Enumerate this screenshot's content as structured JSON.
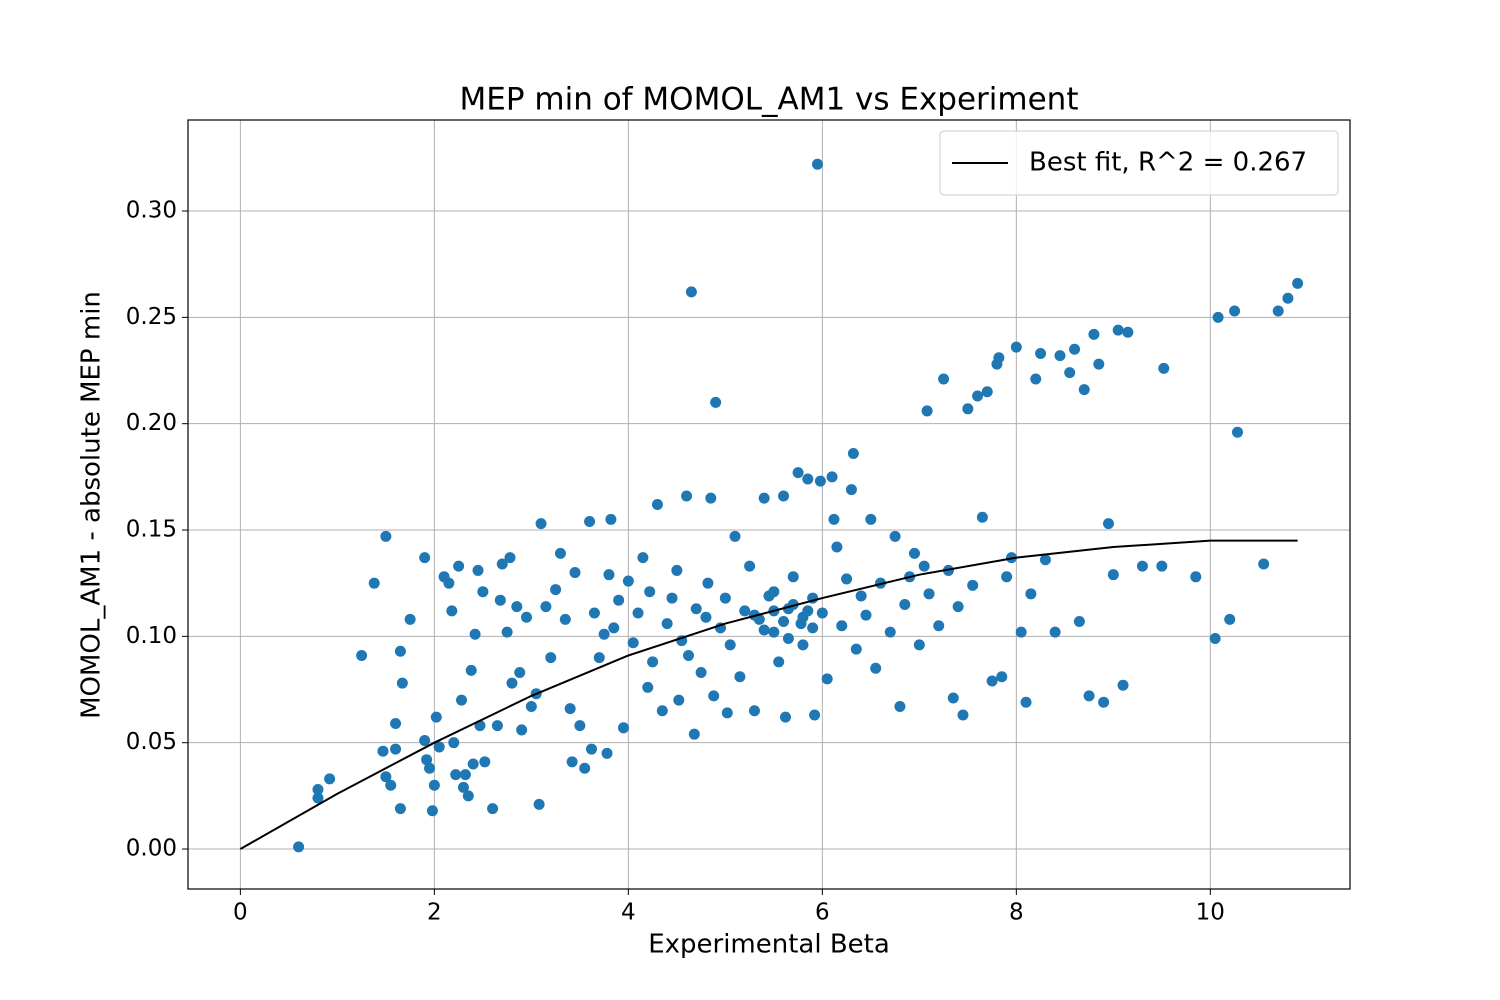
{
  "chart_data": {
    "type": "scatter",
    "title": "MEP min of MOMOL_AM1 vs Experiment",
    "xlabel": "Experimental Beta",
    "ylabel": "MOMOL_AM1 - absolute MEP min",
    "xlim": [
      -0.54,
      11.44
    ],
    "ylim": [
      -0.0188,
      0.3428
    ],
    "xticks": [
      0,
      2,
      4,
      6,
      8,
      10
    ],
    "yticks": [
      {
        "value": 0,
        "label": "0.00"
      },
      {
        "value": 0.05,
        "label": "0.05"
      },
      {
        "value": 0.1,
        "label": "0.10"
      },
      {
        "value": 0.15,
        "label": "0.15"
      },
      {
        "value": 0.2,
        "label": "0.20"
      },
      {
        "value": 0.25,
        "label": "0.25"
      },
      {
        "value": 0.3,
        "label": "0.30"
      }
    ],
    "grid": true,
    "legend": "upper right",
    "series": [
      {
        "type": "scatter",
        "color": "#1f77b4",
        "x": [
          0.6,
          0.8,
          0.8,
          0.92,
          1.25,
          1.38,
          1.5,
          1.5,
          1.47,
          1.55,
          1.6,
          1.6,
          1.65,
          1.67,
          1.65,
          1.75,
          1.9,
          1.9,
          1.92,
          1.95,
          1.98,
          2.0,
          2.02,
          2.05,
          2.1,
          2.15,
          2.18,
          2.2,
          2.22,
          2.25,
          2.28,
          2.3,
          2.32,
          2.35,
          2.38,
          2.4,
          2.42,
          2.45,
          2.47,
          2.5,
          2.52,
          2.6,
          2.65,
          2.68,
          2.7,
          2.75,
          2.78,
          2.8,
          2.85,
          2.88,
          2.9,
          2.95,
          3.0,
          3.05,
          3.08,
          3.1,
          3.15,
          3.2,
          3.25,
          3.3,
          3.35,
          3.4,
          3.42,
          3.45,
          3.5,
          3.55,
          3.6,
          3.62,
          3.65,
          3.7,
          3.75,
          3.78,
          3.8,
          3.82,
          3.85,
          3.9,
          3.95,
          4.0,
          4.05,
          4.1,
          4.15,
          4.2,
          4.22,
          4.25,
          4.3,
          4.35,
          4.4,
          4.45,
          4.5,
          4.52,
          4.55,
          4.6,
          4.62,
          4.65,
          4.68,
          4.7,
          4.75,
          4.8,
          4.82,
          4.85,
          4.88,
          4.9,
          4.95,
          5.0,
          5.02,
          5.05,
          5.1,
          5.15,
          5.2,
          5.25,
          5.3,
          5.35,
          5.4,
          5.45,
          5.5,
          5.55,
          5.6,
          5.62,
          5.65,
          5.7,
          5.75,
          5.78,
          5.8,
          5.85,
          5.9,
          5.92,
          5.95,
          5.98,
          6.0,
          6.05,
          6.1,
          6.12,
          6.15,
          6.2,
          6.25,
          6.3,
          6.32,
          6.35,
          6.4,
          6.45,
          6.5,
          6.55,
          6.6,
          6.7,
          6.75,
          6.8,
          6.85,
          6.9,
          6.95,
          7.0,
          7.05,
          7.08,
          7.1,
          7.2,
          7.25,
          7.3,
          7.35,
          7.4,
          7.45,
          7.5,
          7.55,
          7.6,
          7.65,
          7.7,
          7.75,
          7.8,
          7.82,
          7.85,
          7.9,
          7.95,
          8.0,
          8.05,
          8.1,
          8.15,
          8.2,
          8.25,
          8.3,
          8.4,
          8.45,
          8.55,
          8.6,
          8.65,
          8.7,
          8.75,
          8.8,
          8.85,
          8.9,
          8.95,
          9.0,
          9.05,
          9.1,
          9.15,
          9.3,
          9.5,
          9.52,
          9.85,
          10.05,
          10.08,
          10.2,
          10.25,
          10.28,
          10.55,
          10.7,
          10.8,
          10.9,
          5.3,
          5.4,
          5.5,
          5.6,
          5.7,
          5.8,
          5.9,
          5.5,
          5.65,
          5.85
        ],
        "values": [
          0.001,
          0.028,
          0.024,
          0.033,
          0.091,
          0.125,
          0.147,
          0.034,
          0.046,
          0.03,
          0.059,
          0.047,
          0.093,
          0.078,
          0.019,
          0.108,
          0.137,
          0.051,
          0.042,
          0.038,
          0.018,
          0.03,
          0.062,
          0.048,
          0.128,
          0.125,
          0.112,
          0.05,
          0.035,
          0.133,
          0.07,
          0.029,
          0.035,
          0.025,
          0.084,
          0.04,
          0.101,
          0.131,
          0.058,
          0.121,
          0.041,
          0.019,
          0.058,
          0.117,
          0.134,
          0.102,
          0.137,
          0.078,
          0.114,
          0.083,
          0.056,
          0.109,
          0.067,
          0.073,
          0.021,
          0.153,
          0.114,
          0.09,
          0.122,
          0.139,
          0.108,
          0.066,
          0.041,
          0.13,
          0.058,
          0.038,
          0.154,
          0.047,
          0.111,
          0.09,
          0.101,
          0.045,
          0.129,
          0.155,
          0.104,
          0.117,
          0.057,
          0.126,
          0.097,
          0.111,
          0.137,
          0.076,
          0.121,
          0.088,
          0.162,
          0.065,
          0.106,
          0.118,
          0.131,
          0.07,
          0.098,
          0.166,
          0.091,
          0.262,
          0.054,
          0.113,
          0.083,
          0.109,
          0.125,
          0.165,
          0.072,
          0.21,
          0.104,
          0.118,
          0.064,
          0.096,
          0.147,
          0.081,
          0.112,
          0.133,
          0.065,
          0.108,
          0.165,
          0.119,
          0.102,
          0.088,
          0.166,
          0.062,
          0.113,
          0.128,
          0.177,
          0.106,
          0.096,
          0.174,
          0.118,
          0.063,
          0.322,
          0.173,
          0.111,
          0.08,
          0.175,
          0.155,
          0.142,
          0.105,
          0.127,
          0.169,
          0.186,
          0.094,
          0.119,
          0.11,
          0.155,
          0.085,
          0.125,
          0.102,
          0.147,
          0.067,
          0.115,
          0.128,
          0.139,
          0.096,
          0.133,
          0.206,
          0.12,
          0.105,
          0.221,
          0.131,
          0.071,
          0.114,
          0.063,
          0.207,
          0.124,
          0.213,
          0.156,
          0.215,
          0.079,
          0.228,
          0.231,
          0.081,
          0.128,
          0.137,
          0.236,
          0.102,
          0.069,
          0.12,
          0.221,
          0.233,
          0.136,
          0.102,
          0.232,
          0.224,
          0.235,
          0.107,
          0.216,
          0.072,
          0.242,
          0.228,
          0.069,
          0.153,
          0.129,
          0.244,
          0.077,
          0.243,
          0.133,
          0.133,
          0.226,
          0.128,
          0.099,
          0.25,
          0.108,
          0.253,
          0.196,
          0.134,
          0.253,
          0.259,
          0.266,
          0.11,
          0.103,
          0.112,
          0.107,
          0.115,
          0.109,
          0.104,
          0.121,
          0.099,
          0.112
        ]
      },
      {
        "type": "line",
        "name": "Best fit, R^2 = 0.267",
        "color": "#000000",
        "x": [
          0,
          1,
          2,
          3,
          4,
          5,
          6,
          7,
          8,
          9,
          10,
          10.9
        ],
        "values": [
          0,
          0.026,
          0.05,
          0.072,
          0.091,
          0.106,
          0.118,
          0.129,
          0.137,
          0.142,
          0.145,
          0.145
        ]
      }
    ]
  }
}
